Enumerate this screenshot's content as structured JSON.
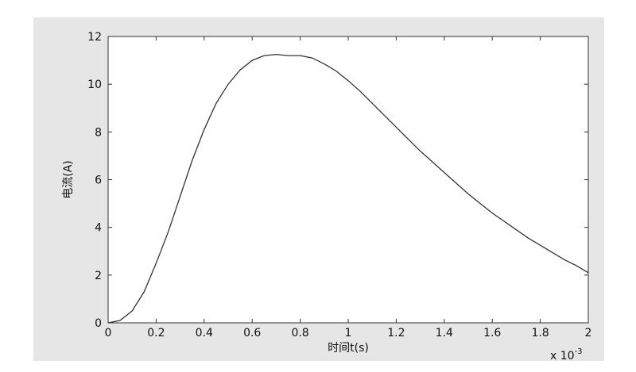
{
  "chart_data": {
    "type": "line",
    "title": "",
    "xlabel": "时间t(s)",
    "ylabel": "电流(A)",
    "x_multiplier": "x 10",
    "x_exponent": "-3",
    "xlim": [
      0,
      2
    ],
    "ylim": [
      0,
      12
    ],
    "xticks": [
      0,
      0.2,
      0.4,
      0.6,
      0.8,
      1,
      1.2,
      1.4,
      1.6,
      1.8,
      2
    ],
    "xtick_labels": [
      "0",
      "0.2",
      "0.4",
      "0.6",
      "0.8",
      "1",
      "1.2",
      "1.4",
      "1.6",
      "1.8",
      "2"
    ],
    "yticks": [
      0,
      2,
      4,
      6,
      8,
      10,
      12
    ],
    "ytick_labels": [
      "0",
      "2",
      "4",
      "6",
      "8",
      "10",
      "12"
    ],
    "grid": false,
    "series": [
      {
        "color": "#333333",
        "x": [
          0,
          0.05,
          0.1,
          0.15,
          0.2,
          0.25,
          0.3,
          0.35,
          0.4,
          0.45,
          0.5,
          0.55,
          0.6,
          0.65,
          0.7,
          0.75,
          0.8,
          0.85,
          0.9,
          0.95,
          1.0,
          1.05,
          1.1,
          1.15,
          1.2,
          1.25,
          1.3,
          1.35,
          1.4,
          1.45,
          1.5,
          1.55,
          1.6,
          1.65,
          1.7,
          1.75,
          1.8,
          1.85,
          1.9,
          1.95,
          2.0
        ],
        "y": [
          0,
          0.1,
          0.5,
          1.3,
          2.5,
          3.8,
          5.3,
          6.8,
          8.1,
          9.2,
          10.0,
          10.6,
          11.0,
          11.2,
          11.25,
          11.2,
          11.2,
          11.1,
          10.85,
          10.55,
          10.15,
          9.7,
          9.2,
          8.7,
          8.2,
          7.7,
          7.2,
          6.75,
          6.3,
          5.85,
          5.4,
          5.0,
          4.6,
          4.25,
          3.9,
          3.55,
          3.25,
          2.95,
          2.65,
          2.4,
          2.1
        ]
      }
    ]
  }
}
